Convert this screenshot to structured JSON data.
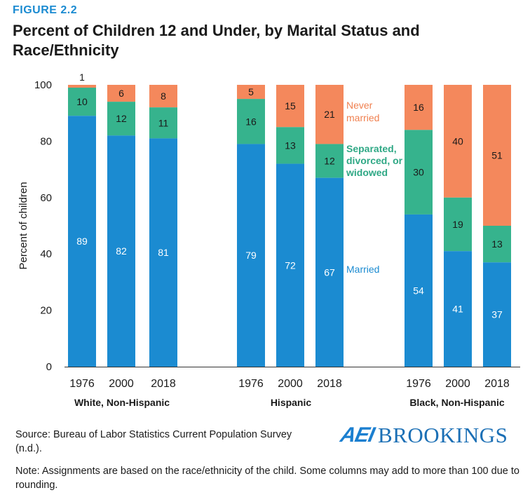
{
  "figure_label": "FIGURE 2.2",
  "title": "Percent of Children 12 and Under, by Marital Status and Race/Ethnicity",
  "source": "Source: Bureau of Labor Statistics Current Population Survey (n.d.).",
  "note": "Note: Assignments are based on the race/ethnicity of the child. Some columns may add to more than 100 due to rounding.",
  "logo": {
    "left": "AEI",
    "right": "BROOKINGS"
  },
  "colors": {
    "married": "#1b8bd1",
    "separated": "#36b38d",
    "never": "#f4885c",
    "axis": "#333333",
    "married_label": "#1b8bd1",
    "separated_label": "#2fa885",
    "never_label": "#f08050"
  },
  "chart_data": {
    "type": "bar",
    "stacked": true,
    "ylabel": "Percent of children",
    "ylim": [
      0,
      100
    ],
    "yticks": [
      0,
      20,
      40,
      60,
      80,
      100
    ],
    "groups": [
      {
        "name": "White, Non-Hispanic",
        "years": [
          "1976",
          "2000",
          "2018"
        ]
      },
      {
        "name": "Hispanic",
        "years": [
          "1976",
          "2000",
          "2018"
        ]
      },
      {
        "name": "Black, Non-Hispanic",
        "years": [
          "1976",
          "2000",
          "2018"
        ]
      }
    ],
    "series": [
      {
        "key": "married",
        "name": "Married",
        "values": [
          89,
          82,
          81,
          79,
          72,
          67,
          54,
          41,
          37
        ]
      },
      {
        "key": "separated",
        "name": "Separated, divorced, or widowed",
        "values": [
          10,
          12,
          11,
          16,
          13,
          12,
          30,
          19,
          13
        ]
      },
      {
        "key": "never",
        "name": "Never married",
        "values": [
          1,
          6,
          8,
          5,
          15,
          21,
          16,
          40,
          51
        ]
      }
    ],
    "legend_lines": {
      "married": [
        "Married"
      ],
      "separated": [
        "Separated,",
        "divorced, or",
        "widowed"
      ],
      "never": [
        "Never",
        "married"
      ]
    }
  }
}
